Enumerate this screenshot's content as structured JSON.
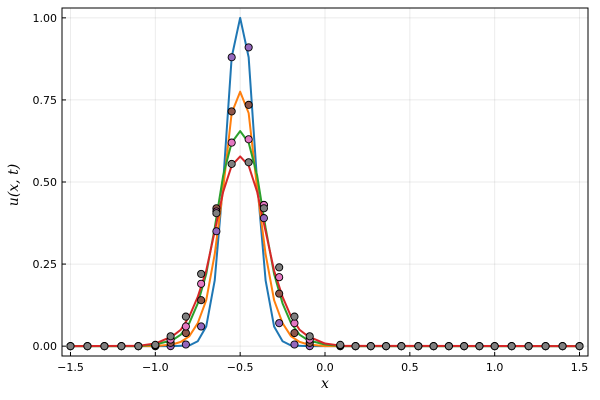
{
  "chart_data": {
    "type": "line",
    "title": "",
    "xlabel": "x",
    "ylabel": "u(x, t)",
    "xlim": [
      -1.55,
      1.55
    ],
    "ylim": [
      -0.03,
      1.03
    ],
    "grid": true,
    "legend": "none",
    "x_ticks": [
      -1.5,
      -1.0,
      -0.5,
      0.0,
      0.5,
      1.0,
      1.5
    ],
    "x_tick_labels": [
      "−1.5",
      "−1.0",
      "−0.5",
      "0.0",
      "0.5",
      "1.0",
      "1.5"
    ],
    "y_ticks": [
      0.0,
      0.25,
      0.5,
      0.75,
      1.0
    ],
    "y_tick_labels": [
      "0.00",
      "0.25",
      "0.50",
      "0.75",
      "1.00"
    ],
    "line_series": [
      {
        "color": "#1f77b4",
        "x": [
          -1.5,
          -1.0,
          -0.9,
          -0.8,
          -0.75,
          -0.7,
          -0.65,
          -0.6,
          -0.55,
          -0.5,
          -0.45,
          -0.4,
          -0.35,
          -0.3,
          -0.25,
          -0.2,
          -0.1,
          0.0,
          1.5
        ],
        "y": [
          0.0,
          0.0,
          0.0,
          0.002,
          0.015,
          0.06,
          0.2,
          0.5,
          0.88,
          1.0,
          0.88,
          0.5,
          0.2,
          0.06,
          0.015,
          0.002,
          0.0,
          0.0,
          0.0
        ]
      },
      {
        "color": "#ff7f0e",
        "x": [
          -1.5,
          -1.0,
          -0.9,
          -0.85,
          -0.8,
          -0.75,
          -0.7,
          -0.65,
          -0.6,
          -0.55,
          -0.5,
          -0.45,
          -0.4,
          -0.35,
          -0.3,
          -0.25,
          -0.2,
          -0.15,
          -0.1,
          0.0,
          1.5
        ],
        "y": [
          0.0,
          0.0,
          0.005,
          0.013,
          0.03,
          0.07,
          0.14,
          0.28,
          0.48,
          0.71,
          0.775,
          0.71,
          0.48,
          0.28,
          0.14,
          0.07,
          0.03,
          0.013,
          0.005,
          0.0,
          0.0
        ]
      },
      {
        "color": "#2ca02c",
        "x": [
          -1.5,
          -1.1,
          -1.0,
          -0.9,
          -0.85,
          -0.8,
          -0.75,
          -0.7,
          -0.65,
          -0.6,
          -0.55,
          -0.5,
          -0.45,
          -0.4,
          -0.35,
          -0.3,
          -0.25,
          -0.2,
          -0.15,
          -0.1,
          0.0,
          0.1,
          1.5
        ],
        "y": [
          0.0,
          0.0,
          0.005,
          0.018,
          0.035,
          0.07,
          0.13,
          0.22,
          0.36,
          0.52,
          0.62,
          0.655,
          0.62,
          0.52,
          0.36,
          0.22,
          0.13,
          0.07,
          0.035,
          0.018,
          0.005,
          0.0,
          0.0
        ]
      },
      {
        "color": "#d62728",
        "x": [
          -1.5,
          -1.1,
          -1.0,
          -0.9,
          -0.85,
          -0.8,
          -0.75,
          -0.7,
          -0.65,
          -0.6,
          -0.55,
          -0.5,
          -0.45,
          -0.4,
          -0.35,
          -0.3,
          -0.25,
          -0.2,
          -0.15,
          -0.1,
          0.0,
          0.1,
          1.5
        ],
        "y": [
          0.0,
          0.001,
          0.008,
          0.03,
          0.05,
          0.09,
          0.15,
          0.23,
          0.35,
          0.47,
          0.55,
          0.578,
          0.55,
          0.47,
          0.35,
          0.23,
          0.15,
          0.09,
          0.05,
          0.03,
          0.008,
          0.001,
          0.0
        ]
      }
    ],
    "point_x": [
      -1.5,
      -1.4,
      -1.3,
      -1.2,
      -1.1,
      -1.0,
      -0.9,
      -0.8,
      -0.7,
      -0.6,
      -0.5,
      -0.4,
      -0.3,
      -0.2,
      -0.1,
      0.0,
      0.1,
      0.2,
      0.3,
      0.4,
      0.5,
      0.6,
      0.7,
      0.8,
      0.9,
      1.0,
      1.1,
      1.2,
      1.3,
      1.4,
      1.5
    ],
    "marker_series": [
      {
        "color": "#9467bd",
        "x": [
          -1.5,
          -1.4,
          -1.3,
          -1.2,
          -1.1,
          -1.0,
          -0.91,
          -0.82,
          -0.73,
          -0.64,
          -0.55,
          -0.45,
          -0.36,
          -0.27,
          -0.18,
          -0.09,
          0.09,
          0.18,
          0.27,
          0.36,
          0.45,
          0.55,
          0.64,
          0.73,
          0.82,
          0.91,
          1.0,
          1.1,
          1.2,
          1.3,
          1.4,
          1.5
        ],
        "y": [
          0.0,
          0.0,
          0.0,
          0.0,
          0.0,
          0.0,
          0.0,
          0.005,
          0.06,
          0.35,
          0.88,
          0.91,
          0.39,
          0.07,
          0.005,
          0.0,
          0.0,
          0.0,
          0.0,
          0.0,
          0.0,
          0.0,
          0.0,
          0.0,
          0.0,
          0.0,
          0.0,
          0.0,
          0.0,
          0.0,
          0.0,
          0.0
        ]
      },
      {
        "color": "#8c564b",
        "x": [
          -1.5,
          -1.4,
          -1.3,
          -1.2,
          -1.1,
          -1.0,
          -0.91,
          -0.82,
          -0.73,
          -0.64,
          -0.55,
          -0.45,
          -0.36,
          -0.27,
          -0.18,
          -0.09,
          0.09,
          0.18,
          0.27,
          0.36,
          0.45,
          0.55,
          0.64,
          0.73,
          0.82,
          0.91,
          1.0,
          1.1,
          1.2,
          1.3,
          1.4,
          1.5
        ],
        "y": [
          0.0,
          0.0,
          0.0,
          0.0,
          0.0,
          0.0,
          0.01,
          0.04,
          0.14,
          0.42,
          0.715,
          0.735,
          0.43,
          0.16,
          0.04,
          0.01,
          0.0,
          0.0,
          0.0,
          0.0,
          0.0,
          0.0,
          0.0,
          0.0,
          0.0,
          0.0,
          0.0,
          0.0,
          0.0,
          0.0,
          0.0,
          0.0
        ]
      },
      {
        "color": "#e377c2",
        "x": [
          -1.5,
          -1.4,
          -1.3,
          -1.2,
          -1.1,
          -1.0,
          -0.91,
          -0.82,
          -0.73,
          -0.64,
          -0.55,
          -0.45,
          -0.36,
          -0.27,
          -0.18,
          -0.09,
          0.09,
          0.18,
          0.27,
          0.36,
          0.45,
          0.55,
          0.64,
          0.73,
          0.82,
          0.91,
          1.0,
          1.1,
          1.2,
          1.3,
          1.4,
          1.5
        ],
        "y": [
          0.0,
          0.0,
          0.0,
          0.0,
          0.0,
          0.002,
          0.02,
          0.06,
          0.19,
          0.41,
          0.62,
          0.63,
          0.43,
          0.21,
          0.07,
          0.02,
          0.002,
          0.0,
          0.0,
          0.0,
          0.0,
          0.0,
          0.0,
          0.0,
          0.0,
          0.0,
          0.0,
          0.0,
          0.0,
          0.0,
          0.0,
          0.0
        ]
      },
      {
        "color": "#7f7f7f",
        "x": [
          -1.5,
          -1.4,
          -1.3,
          -1.2,
          -1.1,
          -1.0,
          -0.91,
          -0.82,
          -0.73,
          -0.64,
          -0.55,
          -0.45,
          -0.36,
          -0.27,
          -0.18,
          -0.09,
          0.09,
          0.18,
          0.27,
          0.36,
          0.45,
          0.55,
          0.64,
          0.73,
          0.82,
          0.91,
          1.0,
          1.1,
          1.2,
          1.3,
          1.4,
          1.5
        ],
        "y": [
          0.0,
          0.0,
          0.0,
          0.0,
          0.0,
          0.004,
          0.03,
          0.09,
          0.22,
          0.405,
          0.555,
          0.56,
          0.42,
          0.24,
          0.09,
          0.03,
          0.004,
          0.0,
          0.0,
          0.0,
          0.0,
          0.0,
          0.0,
          0.0,
          0.0,
          0.0,
          0.0,
          0.0,
          0.0,
          0.0,
          0.0,
          0.0
        ]
      }
    ]
  }
}
